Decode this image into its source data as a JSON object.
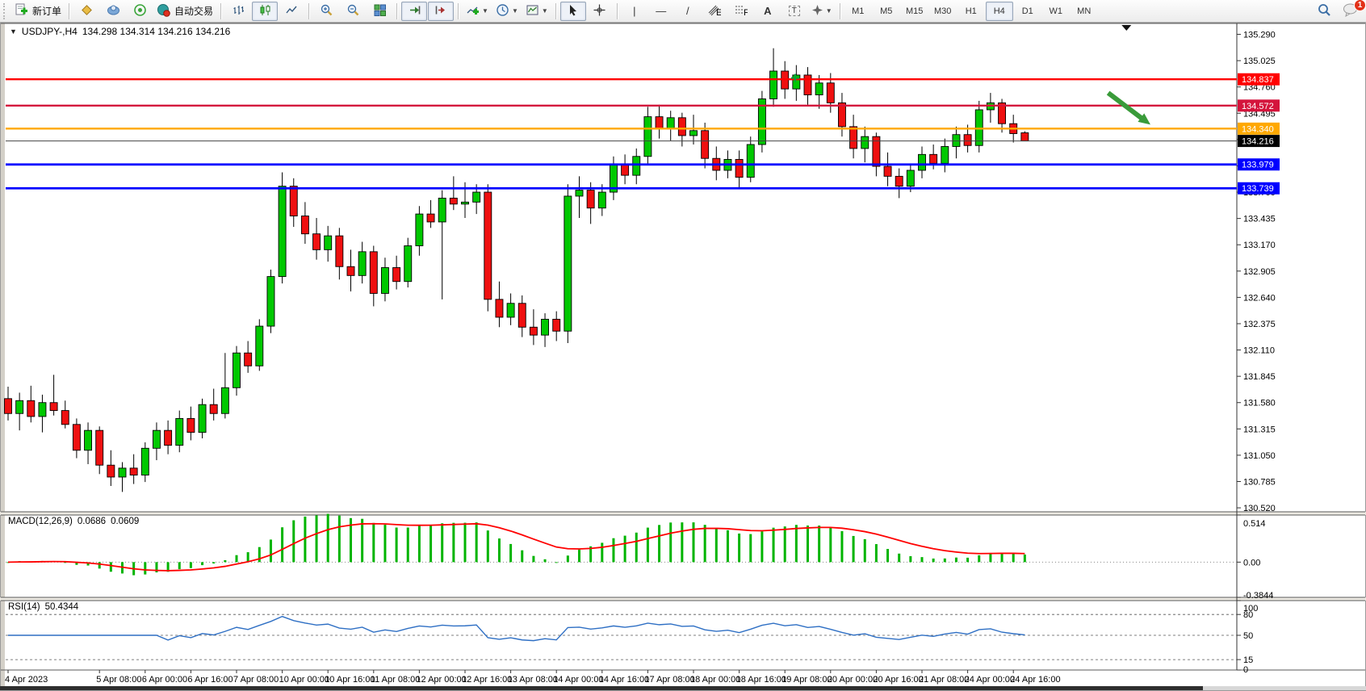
{
  "toolbar": {
    "new_order": "新订单",
    "auto_trading": "自动交易",
    "timeframes": [
      "M1",
      "M5",
      "M15",
      "M30",
      "H1",
      "H4",
      "D1",
      "W1",
      "MN"
    ],
    "active_timeframe": "H4",
    "notification_badge": "1"
  },
  "chart_header": {
    "symbol_period": "USDJPY-,H4",
    "ohlc": "134.298 134.314 134.216 134.216"
  },
  "chart_data": {
    "type": "candlestick",
    "symbol": "USDJPY",
    "period": "H4",
    "start_time": "4 Apr 2023 00:00, H4 bars, weekdays only",
    "ylim": [
      130.48,
      135.4
    ],
    "up_color": "#00c800",
    "down_color": "#ef1010",
    "wick_color": "#000000",
    "price_ticks": [
      "135.290",
      "135.025",
      "134.760",
      "134.495",
      "134.230",
      "133.965",
      "133.700",
      "133.435",
      "133.170",
      "132.905",
      "132.640",
      "132.375",
      "132.110",
      "131.845",
      "131.580",
      "131.315",
      "131.050",
      "130.785",
      "130.520"
    ],
    "hlines": [
      {
        "price": 134.837,
        "label": "134.837",
        "color": "#ff0000",
        "width": 2.4
      },
      {
        "price": 134.572,
        "label": "134.572",
        "color": "#d4143c",
        "width": 2.4
      },
      {
        "price": 134.34,
        "label": "134.340",
        "color": "#ffa800",
        "width": 2.4
      },
      {
        "price": 133.979,
        "label": "133.979",
        "color": "#0000ff",
        "width": 2.8
      },
      {
        "price": 133.739,
        "label": "133.739",
        "color": "#0000ff",
        "width": 2.8
      }
    ],
    "current_price": {
      "price": 134.216,
      "label": "134.216",
      "line_color": "#444444",
      "tag_bg": "#000000"
    },
    "candles": [
      [
        131.62,
        131.74,
        131.4,
        131.47
      ],
      [
        131.47,
        131.68,
        131.3,
        131.6
      ],
      [
        131.6,
        131.75,
        131.38,
        131.44
      ],
      [
        131.44,
        131.66,
        131.28,
        131.58
      ],
      [
        131.58,
        131.86,
        131.45,
        131.5
      ],
      [
        131.5,
        131.6,
        131.32,
        131.36
      ],
      [
        131.36,
        131.42,
        131.02,
        131.1
      ],
      [
        131.1,
        131.38,
        130.96,
        131.3
      ],
      [
        131.3,
        131.34,
        130.86,
        130.95
      ],
      [
        130.95,
        131.1,
        130.74,
        130.83
      ],
      [
        130.83,
        130.98,
        130.68,
        130.92
      ],
      [
        130.92,
        131.06,
        130.76,
        130.85
      ],
      [
        130.85,
        131.18,
        130.78,
        131.12
      ],
      [
        131.12,
        131.38,
        131.0,
        131.3
      ],
      [
        131.3,
        131.4,
        131.06,
        131.15
      ],
      [
        131.15,
        131.5,
        131.08,
        131.42
      ],
      [
        131.42,
        131.54,
        131.2,
        131.28
      ],
      [
        131.28,
        131.62,
        131.22,
        131.56
      ],
      [
        131.56,
        131.72,
        131.4,
        131.47
      ],
      [
        131.47,
        132.08,
        131.42,
        131.73
      ],
      [
        131.73,
        132.15,
        131.65,
        132.08
      ],
      [
        132.08,
        132.2,
        131.88,
        131.95
      ],
      [
        131.95,
        132.42,
        131.9,
        132.35
      ],
      [
        132.35,
        132.92,
        132.28,
        132.85
      ],
      [
        132.85,
        133.9,
        132.78,
        133.76
      ],
      [
        133.76,
        133.84,
        133.35,
        133.46
      ],
      [
        133.46,
        133.6,
        133.18,
        133.28
      ],
      [
        133.28,
        133.44,
        133.02,
        133.12
      ],
      [
        133.12,
        133.36,
        133.0,
        133.26
      ],
      [
        133.26,
        133.34,
        132.82,
        132.95
      ],
      [
        132.95,
        133.12,
        132.7,
        132.86
      ],
      [
        132.86,
        133.2,
        132.78,
        133.1
      ],
      [
        133.1,
        133.16,
        132.55,
        132.68
      ],
      [
        132.68,
        133.04,
        132.6,
        132.94
      ],
      [
        132.94,
        133.06,
        132.72,
        132.8
      ],
      [
        132.8,
        133.24,
        132.74,
        133.16
      ],
      [
        133.16,
        133.56,
        133.06,
        133.48
      ],
      [
        133.48,
        133.62,
        133.34,
        133.4
      ],
      [
        133.4,
        133.72,
        132.62,
        133.64
      ],
      [
        133.64,
        133.86,
        133.52,
        133.58
      ],
      [
        133.58,
        133.8,
        133.44,
        133.6
      ],
      [
        133.6,
        133.78,
        133.48,
        133.7
      ],
      [
        133.7,
        133.78,
        132.5,
        132.62
      ],
      [
        132.62,
        132.8,
        132.34,
        132.44
      ],
      [
        132.44,
        132.68,
        132.36,
        132.58
      ],
      [
        132.58,
        132.66,
        132.24,
        132.34
      ],
      [
        132.34,
        132.52,
        132.16,
        132.26
      ],
      [
        132.26,
        132.48,
        132.14,
        132.42
      ],
      [
        132.42,
        132.5,
        132.2,
        132.3
      ],
      [
        132.3,
        133.78,
        132.18,
        133.66
      ],
      [
        133.66,
        133.86,
        133.44,
        133.72
      ],
      [
        133.72,
        133.8,
        133.38,
        133.54
      ],
      [
        133.54,
        133.78,
        133.46,
        133.7
      ],
      [
        133.7,
        134.06,
        133.62,
        133.98
      ],
      [
        133.98,
        134.08,
        133.78,
        133.87
      ],
      [
        133.87,
        134.14,
        133.78,
        134.06
      ],
      [
        134.06,
        134.56,
        133.98,
        134.46
      ],
      [
        134.46,
        134.58,
        134.24,
        134.34
      ],
      [
        134.34,
        134.52,
        134.22,
        134.45
      ],
      [
        134.45,
        134.5,
        134.16,
        134.27
      ],
      [
        134.27,
        134.48,
        134.18,
        134.32
      ],
      [
        134.32,
        134.4,
        133.94,
        134.04
      ],
      [
        134.04,
        134.16,
        133.82,
        133.92
      ],
      [
        133.92,
        134.12,
        133.84,
        134.03
      ],
      [
        134.03,
        134.12,
        133.74,
        133.85
      ],
      [
        133.85,
        134.26,
        133.8,
        134.18
      ],
      [
        134.18,
        134.72,
        134.1,
        134.64
      ],
      [
        134.64,
        135.15,
        134.56,
        134.92
      ],
      [
        134.92,
        135.02,
        134.64,
        134.74
      ],
      [
        134.74,
        134.98,
        134.62,
        134.88
      ],
      [
        134.88,
        134.96,
        134.58,
        134.68
      ],
      [
        134.68,
        134.88,
        134.54,
        134.8
      ],
      [
        134.8,
        134.9,
        134.5,
        134.6
      ],
      [
        134.6,
        134.7,
        134.26,
        134.36
      ],
      [
        134.36,
        134.48,
        134.04,
        134.14
      ],
      [
        134.14,
        134.36,
        134.0,
        134.26
      ],
      [
        134.26,
        134.3,
        133.86,
        133.96
      ],
      [
        133.96,
        134.1,
        133.76,
        133.86
      ],
      [
        133.86,
        133.94,
        133.64,
        133.76
      ],
      [
        133.76,
        133.98,
        133.7,
        133.92
      ],
      [
        133.92,
        134.16,
        133.84,
        134.08
      ],
      [
        134.08,
        134.18,
        133.93,
        133.99
      ],
      [
        133.99,
        134.24,
        133.9,
        134.16
      ],
      [
        134.16,
        134.36,
        134.04,
        134.28
      ],
      [
        134.28,
        134.38,
        134.1,
        134.17
      ],
      [
        134.17,
        134.62,
        134.1,
        134.53
      ],
      [
        134.53,
        134.7,
        134.4,
        134.6
      ],
      [
        134.6,
        134.64,
        134.3,
        134.39
      ],
      [
        134.39,
        134.48,
        134.2,
        134.29
      ],
      [
        134.298,
        134.314,
        134.216,
        134.216
      ]
    ],
    "time_labels": [
      {
        "i": 0,
        "t": "4 Apr 2023"
      },
      {
        "i": 8,
        "t": "5 Apr 08:00"
      },
      {
        "i": 12,
        "t": "6 Apr 00:00"
      },
      {
        "i": 16,
        "t": "6 Apr 16:00"
      },
      {
        "i": 20,
        "t": "7 Apr 08:00"
      },
      {
        "i": 24,
        "t": "10 Apr 00:00"
      },
      {
        "i": 28,
        "t": "10 Apr 16:00"
      },
      {
        "i": 32,
        "t": "11 Apr 08:00"
      },
      {
        "i": 36,
        "t": "12 Apr 00:00"
      },
      {
        "i": 40,
        "t": "12 Apr 16:00"
      },
      {
        "i": 44,
        "t": "13 Apr 08:00"
      },
      {
        "i": 48,
        "t": "14 Apr 00:00"
      },
      {
        "i": 52,
        "t": "14 Apr 16:00"
      },
      {
        "i": 56,
        "t": "17 Apr 08:00"
      },
      {
        "i": 60,
        "t": "18 Apr 00:00"
      },
      {
        "i": 64,
        "t": "18 Apr 16:00"
      },
      {
        "i": 68,
        "t": "19 Apr 08:00"
      },
      {
        "i": 72,
        "t": "20 Apr 00:00"
      },
      {
        "i": 76,
        "t": "20 Apr 16:00"
      },
      {
        "i": 80,
        "t": "21 Apr 08:00"
      },
      {
        "i": 84,
        "t": "24 Apr 00:00"
      },
      {
        "i": 88,
        "t": "24 Apr 16:00"
      }
    ],
    "annotations": {
      "arrow": {
        "from_bar": 96.3,
        "from_price": 134.7,
        "to_bar": 100.0,
        "to_price": 134.38,
        "color": "#3a9b3a"
      },
      "plus_marker": {
        "bar": 68.9,
        "price": 134.85,
        "color": "#00a33a"
      },
      "top_marker": {
        "bar": 97.9
      }
    },
    "macd": {
      "label": "MACD(12,26,9)",
      "value_main": "0.0686",
      "value_signal": "0.0609",
      "params": [
        12,
        26,
        9
      ],
      "ylim": [
        -0.3844,
        0.514
      ],
      "ticks": [
        {
          "v": 0.514,
          "t": "0.514"
        },
        {
          "v": 0,
          "t": "0.00"
        },
        {
          "v": -0.3844,
          "t": "-0.3844"
        }
      ],
      "hist_color": "#00b400",
      "signal_color": "#ff0000"
    },
    "rsi": {
      "label": "RSI(14)",
      "value": "50.4344",
      "period": 14,
      "ylim": [
        0,
        100
      ],
      "levels": [
        80,
        50,
        15
      ],
      "ticks": [
        {
          "v": 100,
          "t": "100"
        },
        {
          "v": 80,
          "t": "80"
        },
        {
          "v": 50,
          "t": "50"
        },
        {
          "v": 15,
          "t": "15"
        },
        {
          "v": 0,
          "t": "0"
        }
      ],
      "line_color": "#2e6fc4"
    }
  }
}
